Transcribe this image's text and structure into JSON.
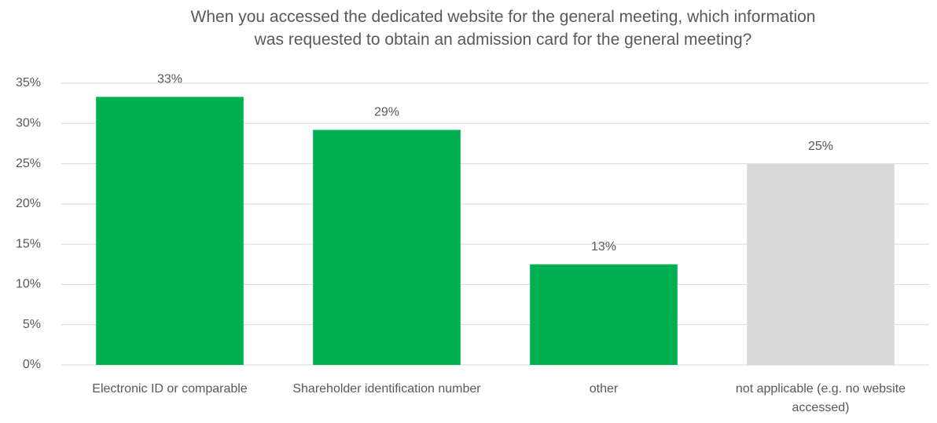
{
  "chart_data": {
    "type": "bar",
    "title": "When you accessed the dedicated website for the general meeting, which information was requested to obtain an admission card for the general meeting?",
    "categories": [
      "Electronic ID or comparable",
      "Shareholder identification number",
      "other",
      "not applicable (e.g. no website accessed)"
    ],
    "values": [
      33.3,
      29.2,
      12.5,
      25.0
    ],
    "value_labels": [
      "33%",
      "29%",
      "13%",
      "25%"
    ],
    "colors": [
      "#00b050",
      "#00b050",
      "#00b050",
      "#d9d9d9"
    ],
    "ylim": [
      0,
      35
    ],
    "yticks": [
      {
        "value": 0,
        "label": "0%"
      },
      {
        "value": 5,
        "label": "5%"
      },
      {
        "value": 10,
        "label": "10%"
      },
      {
        "value": 15,
        "label": "15%"
      },
      {
        "value": 20,
        "label": "20%"
      },
      {
        "value": 25,
        "label": "25%"
      },
      {
        "value": 30,
        "label": "30%"
      },
      {
        "value": 35,
        "label": "35%"
      }
    ],
    "grid": true
  }
}
